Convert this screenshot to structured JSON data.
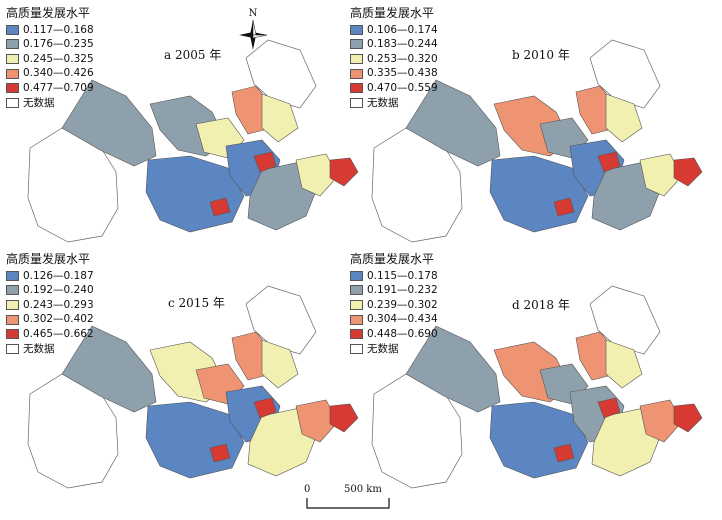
{
  "panels": [
    {
      "label": "a 2005 年",
      "legend": {
        "title": "高质量发展水平",
        "classes": [
          "0.117—0.168",
          "0.176—0.235",
          "0.245—0.325",
          "0.340—0.426",
          "0.477—0.709"
        ],
        "nodata": "无数据"
      }
    },
    {
      "label": "b 2010 年",
      "legend": {
        "title": "高质量发展水平",
        "classes": [
          "0.106—0.174",
          "0.183—0.244",
          "0.253—0.320",
          "0.335—0.438",
          "0.470—0.559"
        ],
        "nodata": "无数据"
      }
    },
    {
      "label": "c 2015 年",
      "legend": {
        "title": "高质量发展水平",
        "classes": [
          "0.126—0.187",
          "0.192—0.240",
          "0.243—0.293",
          "0.302—0.402",
          "0.465—0.662"
        ],
        "nodata": "无数据"
      }
    },
    {
      "label": "d 2018 年",
      "legend": {
        "title": "高质量发展水平",
        "classes": [
          "0.115—0.178",
          "0.191—0.232",
          "0.239—0.302",
          "0.304—0.434",
          "0.448—0.690"
        ],
        "nodata": "无数据"
      }
    }
  ],
  "class_colors": [
    "#5b86c2",
    "#8fa0ad",
    "#f2f0b0",
    "#ef9472",
    "#d73a32",
    "#ffffff"
  ],
  "north_arrow": {
    "letter": "N",
    "icon": "compass-rose-icon"
  },
  "scale_bar": {
    "zero": "0",
    "distance": "500 km"
  }
}
